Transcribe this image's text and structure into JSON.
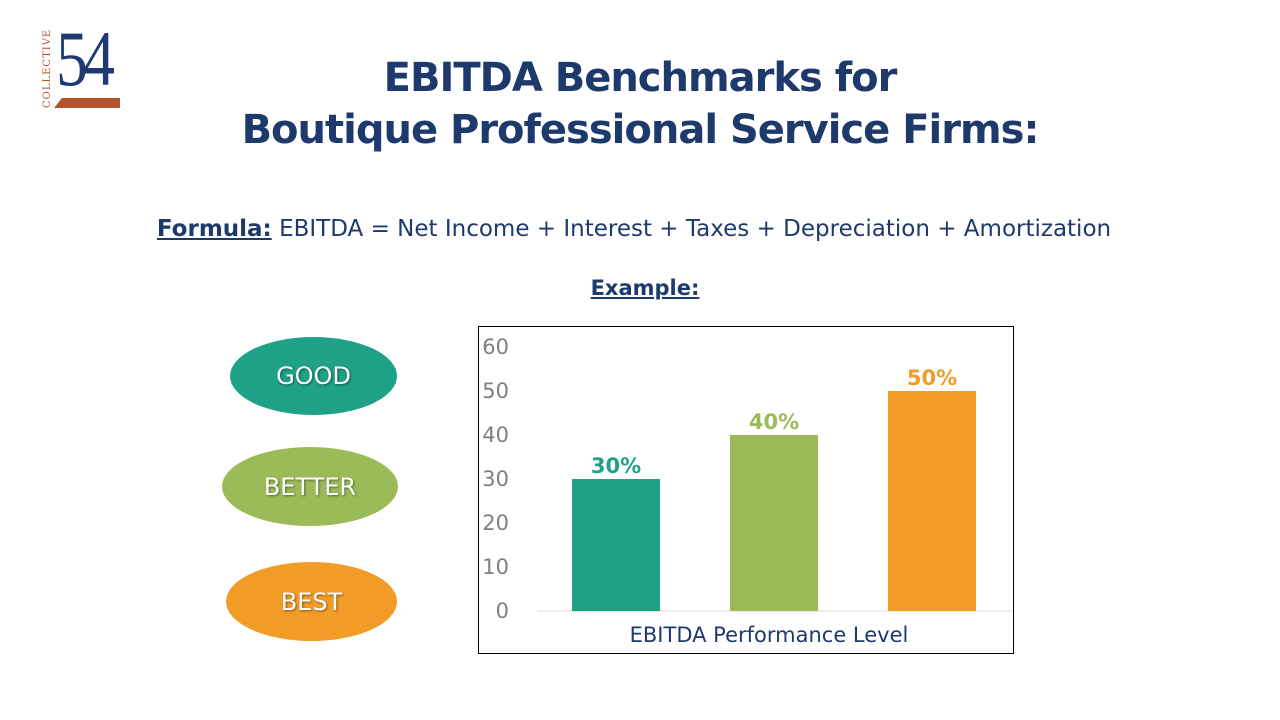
{
  "logo": {
    "word": "COLLECTIVE",
    "number": "54",
    "colors": {
      "navy": "#1e3a73",
      "rust": "#b5532b"
    }
  },
  "title": {
    "line1": "EBITDA Benchmarks for",
    "line2": "Boutique Professional Service Firms:"
  },
  "formula": {
    "label": "Formula:",
    "text": "EBITDA = Net Income + Interest + Taxes + Depreciation + Amortization"
  },
  "example": {
    "label": "Example:"
  },
  "levels": [
    {
      "label": "GOOD",
      "color": "#1fa187"
    },
    {
      "label": "BETTER",
      "color": "#9bbb59"
    },
    {
      "label": "BEST",
      "color": "#f19c27"
    }
  ],
  "chart_data": {
    "type": "bar",
    "categories": [
      "GOOD",
      "BETTER",
      "BEST"
    ],
    "values": [
      30,
      40,
      50
    ],
    "data_labels": [
      "30%",
      "40%",
      "50%"
    ],
    "colors": [
      "#1fa187",
      "#9bbb59",
      "#f19c27"
    ],
    "xlabel": "EBITDA Performance Level",
    "ylim": [
      0,
      60
    ],
    "yticks": [
      0,
      10,
      20,
      30,
      40,
      50,
      60
    ],
    "grid": false,
    "legend": "none"
  }
}
